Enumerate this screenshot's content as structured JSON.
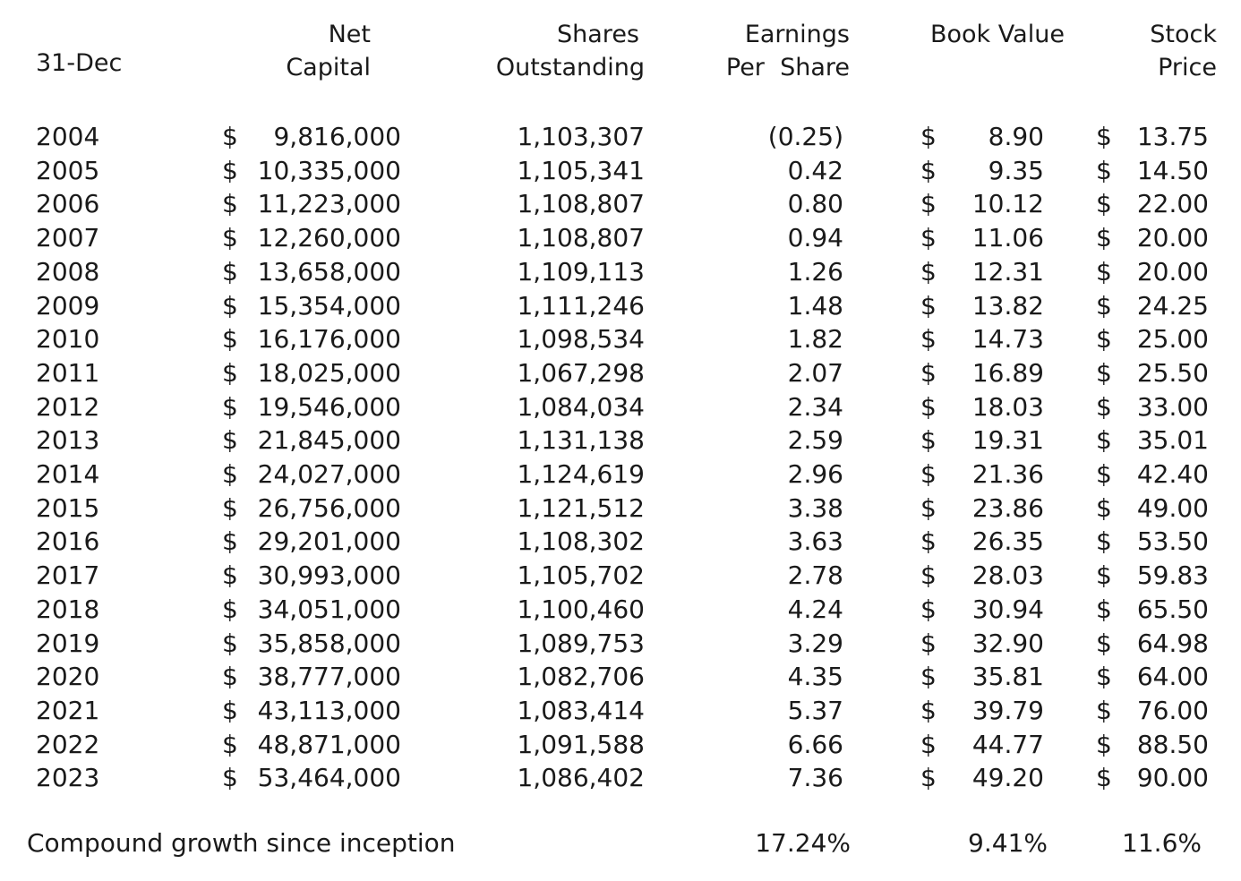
{
  "headers": {
    "year": "31-Dec",
    "net_capital_line1": "Net",
    "net_capital_line2": "Capital",
    "shares_line1": "Shares",
    "shares_line2": "Outstanding",
    "eps_line1": "Earnings",
    "eps_line2": "Per  Share",
    "book_value": "Book Value",
    "stock_price_line1": "Stock",
    "stock_price_line2": "Price"
  },
  "currency_symbol": "$",
  "rows": [
    {
      "year": "2004",
      "net_capital": "9,816,000",
      "shares": "1,103,307",
      "eps": "(0.25)",
      "book_value": "8.90",
      "stock_price": "13.75"
    },
    {
      "year": "2005",
      "net_capital": "10,335,000",
      "shares": "1,105,341",
      "eps": "0.42",
      "book_value": "9.35",
      "stock_price": "14.50"
    },
    {
      "year": "2006",
      "net_capital": "11,223,000",
      "shares": "1,108,807",
      "eps": "0.80",
      "book_value": "10.12",
      "stock_price": "22.00"
    },
    {
      "year": "2007",
      "net_capital": "12,260,000",
      "shares": "1,108,807",
      "eps": "0.94",
      "book_value": "11.06",
      "stock_price": "20.00"
    },
    {
      "year": "2008",
      "net_capital": "13,658,000",
      "shares": "1,109,113",
      "eps": "1.26",
      "book_value": "12.31",
      "stock_price": "20.00"
    },
    {
      "year": "2009",
      "net_capital": "15,354,000",
      "shares": "1,111,246",
      "eps": "1.48",
      "book_value": "13.82",
      "stock_price": "24.25"
    },
    {
      "year": "2010",
      "net_capital": "16,176,000",
      "shares": "1,098,534",
      "eps": "1.82",
      "book_value": "14.73",
      "stock_price": "25.00"
    },
    {
      "year": "2011",
      "net_capital": "18,025,000",
      "shares": "1,067,298",
      "eps": "2.07",
      "book_value": "16.89",
      "stock_price": "25.50"
    },
    {
      "year": "2012",
      "net_capital": "19,546,000",
      "shares": "1,084,034",
      "eps": "2.34",
      "book_value": "18.03",
      "stock_price": "33.00"
    },
    {
      "year": "2013",
      "net_capital": "21,845,000",
      "shares": "1,131,138",
      "eps": "2.59",
      "book_value": "19.31",
      "stock_price": "35.01"
    },
    {
      "year": "2014",
      "net_capital": "24,027,000",
      "shares": "1,124,619",
      "eps": "2.96",
      "book_value": "21.36",
      "stock_price": "42.40"
    },
    {
      "year": "2015",
      "net_capital": "26,756,000",
      "shares": "1,121,512",
      "eps": "3.38",
      "book_value": "23.86",
      "stock_price": "49.00"
    },
    {
      "year": "2016",
      "net_capital": "29,201,000",
      "shares": "1,108,302",
      "eps": "3.63",
      "book_value": "26.35",
      "stock_price": "53.50"
    },
    {
      "year": "2017",
      "net_capital": "30,993,000",
      "shares": "1,105,702",
      "eps": "2.78",
      "book_value": "28.03",
      "stock_price": "59.83"
    },
    {
      "year": "2018",
      "net_capital": "34,051,000",
      "shares": "1,100,460",
      "eps": "4.24",
      "book_value": "30.94",
      "stock_price": "65.50"
    },
    {
      "year": "2019",
      "net_capital": "35,858,000",
      "shares": "1,089,753",
      "eps": "3.29",
      "book_value": "32.90",
      "stock_price": "64.98"
    },
    {
      "year": "2020",
      "net_capital": "38,777,000",
      "shares": "1,082,706",
      "eps": "4.35",
      "book_value": "35.81",
      "stock_price": "64.00"
    },
    {
      "year": "2021",
      "net_capital": "43,113,000",
      "shares": "1,083,414",
      "eps": "5.37",
      "book_value": "39.79",
      "stock_price": "76.00"
    },
    {
      "year": "2022",
      "net_capital": "48,871,000",
      "shares": "1,091,588",
      "eps": "6.66",
      "book_value": "44.77",
      "stock_price": "88.50"
    },
    {
      "year": "2023",
      "net_capital": "53,464,000",
      "shares": "1,086,402",
      "eps": "7.36",
      "book_value": "49.20",
      "stock_price": "90.00"
    }
  ],
  "footer": {
    "label": "Compound growth since inception",
    "eps_growth": "17.24%",
    "book_value_growth": "9.41%",
    "stock_price_growth": "11.6%"
  }
}
